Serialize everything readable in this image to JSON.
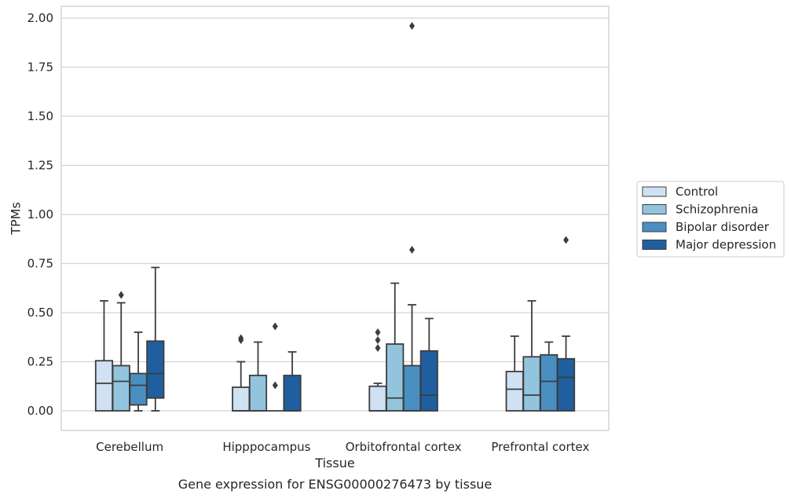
{
  "chart_data": {
    "type": "box",
    "ylabel": "TPMs",
    "xlabel": "Tissue",
    "caption": "Gene expression for ENSG00000276473 by tissue",
    "ylim": [
      -0.1,
      2.06
    ],
    "yticks": [
      "0.00",
      "0.25",
      "0.50",
      "0.75",
      "1.00",
      "1.25",
      "1.50",
      "1.75",
      "2.00"
    ],
    "grid": true,
    "legend_position": "right",
    "categories": [
      "Cerebellum",
      "Hipppocampus",
      "Orbitofrontal cortex",
      "Prefrontal cortex"
    ],
    "series": [
      {
        "name": "Control",
        "color": "#cfe1f2",
        "boxes": [
          {
            "min": 0.0,
            "q1": 0.0,
            "median": 0.14,
            "q3": 0.255,
            "max": 0.56,
            "outliers": []
          },
          {
            "min": 0.0,
            "q1": 0.0,
            "median": 0.0,
            "q3": 0.12,
            "max": 0.25,
            "outliers": [
              0.36,
              0.37
            ]
          },
          {
            "min": 0.0,
            "q1": 0.0,
            "median": 0.0,
            "q3": 0.125,
            "max": 0.14,
            "outliers": [
              0.32,
              0.36,
              0.4
            ]
          },
          {
            "min": 0.0,
            "q1": 0.0,
            "median": 0.11,
            "q3": 0.2,
            "max": 0.38,
            "outliers": []
          }
        ]
      },
      {
        "name": "Schizophrenia",
        "color": "#93c4de",
        "boxes": [
          {
            "min": 0.0,
            "q1": 0.0,
            "median": 0.15,
            "q3": 0.23,
            "max": 0.55,
            "outliers": [
              0.59
            ]
          },
          {
            "min": 0.0,
            "q1": 0.0,
            "median": 0.0,
            "q3": 0.18,
            "max": 0.35,
            "outliers": []
          },
          {
            "min": 0.0,
            "q1": 0.0,
            "median": 0.065,
            "q3": 0.34,
            "max": 0.65,
            "outliers": []
          },
          {
            "min": 0.0,
            "q1": 0.0,
            "median": 0.08,
            "q3": 0.275,
            "max": 0.56,
            "outliers": []
          }
        ]
      },
      {
        "name": "Bipolar disorder",
        "color": "#4a8fc2",
        "boxes": [
          {
            "min": 0.0,
            "q1": 0.03,
            "median": 0.13,
            "q3": 0.19,
            "max": 0.4,
            "outliers": []
          },
          {
            "min": 0.0,
            "q1": 0.0,
            "median": 0.0,
            "q3": 0.0,
            "max": 0.0,
            "outliers": [
              0.13,
              0.43
            ]
          },
          {
            "min": 0.0,
            "q1": 0.0,
            "median": 0.0,
            "q3": 0.23,
            "max": 0.54,
            "outliers": [
              0.82,
              1.96
            ]
          },
          {
            "min": 0.0,
            "q1": 0.0,
            "median": 0.15,
            "q3": 0.285,
            "max": 0.35,
            "outliers": []
          }
        ]
      },
      {
        "name": "Major depression",
        "color": "#1f5fa0",
        "boxes": [
          {
            "min": 0.0,
            "q1": 0.065,
            "median": 0.19,
            "q3": 0.355,
            "max": 0.73,
            "outliers": []
          },
          {
            "min": 0.0,
            "q1": 0.0,
            "median": 0.0,
            "q3": 0.18,
            "max": 0.3,
            "outliers": []
          },
          {
            "min": 0.0,
            "q1": 0.0,
            "median": 0.08,
            "q3": 0.305,
            "max": 0.47,
            "outliers": []
          },
          {
            "min": 0.0,
            "q1": 0.0,
            "median": 0.17,
            "q3": 0.265,
            "max": 0.38,
            "outliers": [
              0.87
            ]
          }
        ]
      }
    ]
  }
}
